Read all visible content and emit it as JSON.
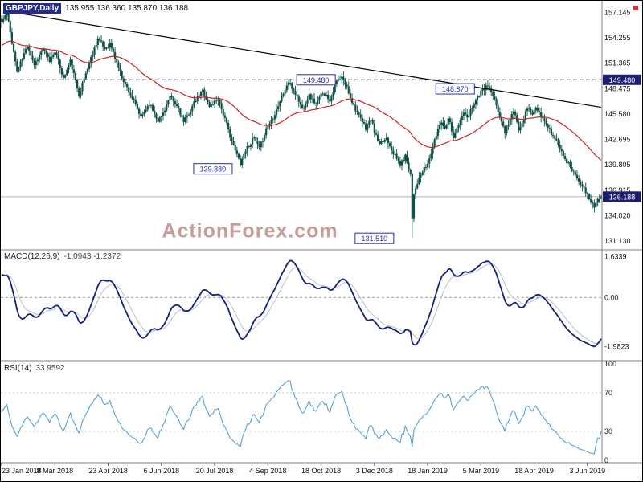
{
  "header": {
    "symbol_label": "GBPJPY,Daily",
    "ohlc_text": "135.955 136.360 135.870 136.188"
  },
  "watermark": {
    "text": "ActionForex.com"
  },
  "colors": {
    "candle": "#0e5146",
    "ma_line": "#cc2222",
    "trendline": "#000000",
    "macd_main": "#14217c",
    "macd_signal": "#b9bcd4",
    "rsi_line": "#58a2d6",
    "annotation": "#2a2fa2",
    "axis_tag_bg": "#1c1f6e",
    "axis_tag_text": "#ffffff",
    "watermark": "#c79c9c",
    "symbol_chip_bg": "#232b8c",
    "resistance_line": "#222222",
    "current_price_line": "#b0b0b0",
    "guide": "#c9c9c9",
    "zero_line": "#999999",
    "separator": "#808080",
    "axis_text": "#111111",
    "marker_red": "#e03030"
  },
  "chart_data": {
    "type": "candlestick",
    "title": "GBPJPY,Daily",
    "symbol": "GBPJPY",
    "timeframe": "Daily",
    "num_candles": 350,
    "last_candle": {
      "open": 135.955,
      "high": 136.36,
      "low": 135.87,
      "close": 136.188
    },
    "price_range": [
      130.6,
      158.0
    ],
    "price_axis_ticks": [
      "157.145",
      "154.255",
      "151.365",
      "148.475",
      "145.580",
      "142.695",
      "139.805",
      "136.915",
      "134.020",
      "131.130"
    ],
    "price_tags": [
      {
        "label": "149.480",
        "price": 149.48
      },
      {
        "label": "136.188",
        "price": 136.188
      }
    ],
    "resistance_level": 149.48,
    "current_price": 136.188,
    "annotations": [
      {
        "text": "149.480",
        "index": 183,
        "price": 149.48
      },
      {
        "text": "148.870",
        "index": 264,
        "price": 148.45
      },
      {
        "text": "139.880",
        "index": 123,
        "price": 139.35
      },
      {
        "text": "131.510",
        "index": 217,
        "price": 131.45
      }
    ],
    "trendline": {
      "from_index": 2,
      "from_price": 157.3,
      "to_index": 349,
      "to_price": 146.35
    },
    "moving_average": {
      "type": "EMA",
      "period": 55
    },
    "price_waypoints": [
      [
        0,
        156.0
      ],
      [
        3,
        157.1
      ],
      [
        9,
        150.4
      ],
      [
        15,
        153.4
      ],
      [
        19,
        151.2
      ],
      [
        24,
        153.0
      ],
      [
        28,
        151.6
      ],
      [
        31,
        152.8
      ],
      [
        36,
        149.6
      ],
      [
        40,
        151.6
      ],
      [
        45,
        147.8
      ],
      [
        51,
        151.4
      ],
      [
        56,
        154.2
      ],
      [
        60,
        153.0
      ],
      [
        63,
        153.6
      ],
      [
        70,
        149.8
      ],
      [
        77,
        147.0
      ],
      [
        81,
        145.2
      ],
      [
        86,
        146.8
      ],
      [
        91,
        144.9
      ],
      [
        93,
        145.3
      ],
      [
        98,
        147.5
      ],
      [
        103,
        146.2
      ],
      [
        106,
        144.6
      ],
      [
        112,
        146.8
      ],
      [
        117,
        148.3
      ],
      [
        121,
        146.4
      ],
      [
        126,
        147.4
      ],
      [
        130,
        145.0
      ],
      [
        135,
        141.9
      ],
      [
        139,
        140.0
      ],
      [
        142,
        141.5
      ],
      [
        147,
        142.9
      ],
      [
        150,
        141.6
      ],
      [
        154,
        143.9
      ],
      [
        158,
        145.2
      ],
      [
        163,
        147.5
      ],
      [
        167,
        149.2
      ],
      [
        171,
        147.9
      ],
      [
        175,
        146.2
      ],
      [
        179,
        147.7
      ],
      [
        183,
        146.7
      ],
      [
        187,
        148.1
      ],
      [
        191,
        147.2
      ],
      [
        195,
        149.3
      ],
      [
        198,
        149.7
      ],
      [
        201,
        148.6
      ],
      [
        204,
        147.0
      ],
      [
        208,
        145.3
      ],
      [
        212,
        144.0
      ],
      [
        215,
        145.0
      ],
      [
        217,
        143.6
      ],
      [
        220,
        142.0
      ],
      [
        224,
        142.9
      ],
      [
        228,
        141.2
      ],
      [
        232,
        139.8
      ],
      [
        235,
        140.8
      ],
      [
        237,
        139.5
      ],
      [
        238,
        138.8
      ],
      [
        239,
        133.8
      ],
      [
        240,
        136.6
      ],
      [
        242,
        137.8
      ],
      [
        245,
        139.0
      ],
      [
        248,
        139.9
      ],
      [
        251,
        141.8
      ],
      [
        254,
        143.9
      ],
      [
        256,
        144.8
      ],
      [
        258,
        143.9
      ],
      [
        260,
        145.3
      ],
      [
        263,
        143.0
      ],
      [
        266,
        144.3
      ],
      [
        269,
        145.8
      ],
      [
        271,
        145.0
      ],
      [
        274,
        146.5
      ],
      [
        277,
        147.5
      ],
      [
        280,
        148.3
      ],
      [
        283,
        148.8
      ],
      [
        285,
        148.0
      ],
      [
        288,
        146.6
      ],
      [
        291,
        144.6
      ],
      [
        293,
        143.6
      ],
      [
        296,
        145.0
      ],
      [
        298,
        145.9
      ],
      [
        301,
        143.9
      ],
      [
        304,
        145.1
      ],
      [
        306,
        146.3
      ],
      [
        309,
        145.6
      ],
      [
        311,
        146.2
      ],
      [
        314,
        145.2
      ],
      [
        317,
        144.5
      ],
      [
        320,
        143.4
      ],
      [
        323,
        142.5
      ],
      [
        326,
        141.3
      ],
      [
        329,
        140.2
      ],
      [
        332,
        139.3
      ],
      [
        335,
        138.4
      ],
      [
        337,
        137.8
      ],
      [
        339,
        137.0
      ],
      [
        341,
        136.3
      ],
      [
        343,
        135.6
      ],
      [
        345,
        135.2
      ],
      [
        347,
        135.9
      ],
      [
        348,
        135.5
      ],
      [
        349,
        136.188
      ]
    ],
    "crash": {
      "index": 239,
      "low": 131.51
    },
    "x_labels": [
      {
        "text": "23 Jan 2018",
        "index": 0
      },
      {
        "text": "8 Mar 2018",
        "index": 31
      },
      {
        "text": "23 Apr 2018",
        "index": 62
      },
      {
        "text": "6 Jun 2018",
        "index": 93
      },
      {
        "text": "20 Jul 2018",
        "index": 124
      },
      {
        "text": "4 Sep 2018",
        "index": 155
      },
      {
        "text": "18 Oct 2018",
        "index": 186
      },
      {
        "text": "3 Dec 2018",
        "index": 217
      },
      {
        "text": "18 Jan 2019",
        "index": 248
      },
      {
        "text": "5 Mar 2019",
        "index": 279
      },
      {
        "text": "18 Apr 2019",
        "index": 310
      },
      {
        "text": "3 Jun 2019",
        "index": 341
      }
    ],
    "macd": {
      "label": "MACD(12,26,9)",
      "values_text": "-1.0943 -1.2372",
      "current_macd": -1.0943,
      "current_signal": -1.2372,
      "fast": 12,
      "slow": 26,
      "signal_period": 9,
      "range": [
        -2.35,
        1.85
      ],
      "ticks": [
        {
          "label": "1.6339",
          "value": 1.6339
        },
        {
          "label": "0.00",
          "value": 0
        },
        {
          "label": "-1.9823",
          "value": -1.9823
        }
      ]
    },
    "rsi": {
      "label": "RSI(14)",
      "value_text": "33.9592",
      "current": 33.9592,
      "period": 14,
      "range": [
        0,
        100
      ],
      "guides": [
        70,
        30
      ],
      "ticks": [
        {
          "label": "100",
          "value": 100
        },
        {
          "label": "70",
          "value": 70
        },
        {
          "label": "30",
          "value": 30
        },
        {
          "label": "0",
          "value": 0
        }
      ]
    },
    "synthesis": {
      "seed": 11,
      "noise": 0.24,
      "wick": 0.55
    }
  }
}
